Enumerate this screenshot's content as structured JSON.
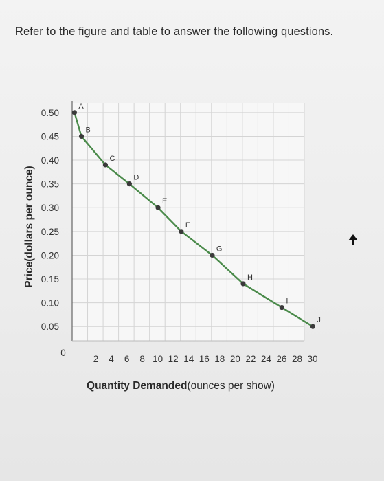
{
  "question": {
    "prompt": "Refer to the figure and table to answer the following questions."
  },
  "chart_data": {
    "type": "line",
    "ylabel": "Price(dollars per ounce)",
    "xlabel_bold": "Quantity Demanded",
    "xlabel_rest": "(ounces per show)",
    "origin_label": "0",
    "xlim": [
      0,
      30
    ],
    "ylim": [
      0.02,
      0.52
    ],
    "x_ticks": [
      2,
      4,
      6,
      8,
      10,
      12,
      14,
      16,
      18,
      20,
      22,
      24,
      26,
      28,
      30
    ],
    "y_ticks": [
      0.5,
      0.45,
      0.4,
      0.35,
      0.3,
      0.25,
      0.2,
      0.15,
      0.1,
      0.05
    ],
    "y_tick_labels": [
      "0.50",
      "0.45",
      "0.40",
      "0.35",
      "0.30",
      "0.25",
      "0.20",
      "0.15",
      "0.10",
      "0.05"
    ],
    "grid": true,
    "series": [
      {
        "color": "#4a8a4a",
        "points": [
          {
            "label": "A",
            "x": 0.3,
            "y": 0.5
          },
          {
            "label": "B",
            "x": 1.2,
            "y": 0.45
          },
          {
            "label": "C",
            "x": 4.3,
            "y": 0.39
          },
          {
            "label": "D",
            "x": 7.4,
            "y": 0.35
          },
          {
            "label": "E",
            "x": 11.1,
            "y": 0.3
          },
          {
            "label": "F",
            "x": 14.1,
            "y": 0.25
          },
          {
            "label": "G",
            "x": 18.1,
            "y": 0.2
          },
          {
            "label": "H",
            "x": 22.1,
            "y": 0.14
          },
          {
            "label": "I",
            "x": 27.1,
            "y": 0.09
          },
          {
            "label": "J",
            "x": 31.1,
            "y": 0.05
          }
        ]
      }
    ],
    "colors": {
      "line": "#4a8a4a",
      "marker": "#3a3a3a",
      "grid": "#d4d4d4",
      "plot_bg": "#f7f7f7"
    }
  }
}
